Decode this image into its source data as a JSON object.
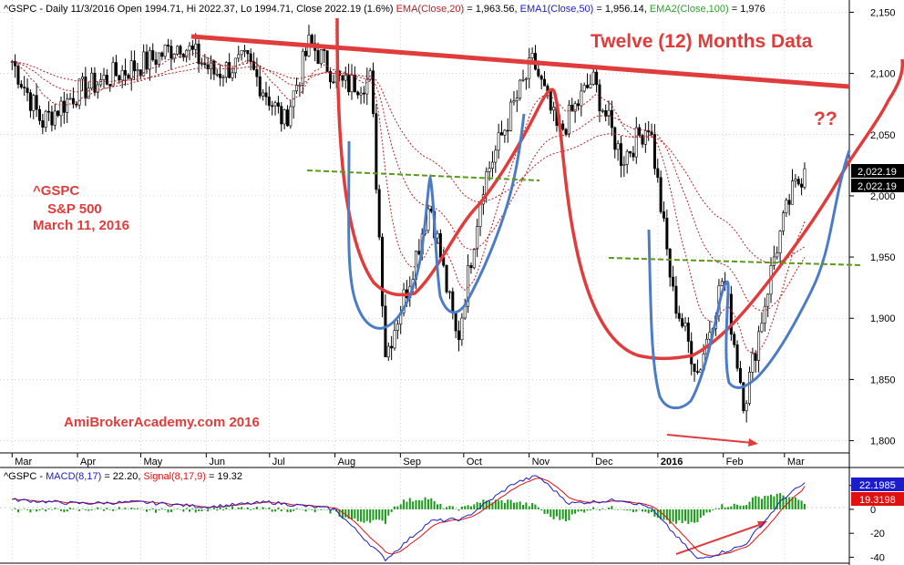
{
  "colors": {
    "price_bars": "#000000",
    "ema20": "#b22222",
    "ema50": "#1c1cc8",
    "ema100": "#2ca02c",
    "annotation_red": "#e03c3c",
    "annotation_blue": "#4d7cc7",
    "annotation_green": "#5a9a1a",
    "macd_line": "#1c1cc8",
    "signal_line": "#e01010",
    "histogram": "#1a9a1a",
    "last_price_box": "#000000",
    "macd_box": "#1c1cc8",
    "signal_box": "#e01010"
  },
  "header": {
    "symbol_info": "^GSPC - Daily 11/3/2016 Open 1994.71, Hi 2022.37, Lo 1994.71, Close 2022.19 (1.6%)",
    "ema20_label": "EMA(Close,20)",
    "ema20_value": " = 1,963.56, ",
    "ema50_label": "EMA1(Close,50)",
    "ema50_value": " = 1,956.14, ",
    "ema100_label": "EMA2(Close,100)",
    "ema100_value": " = 1,976"
  },
  "annotations": {
    "headline": "Twelve (12) Months Data",
    "question": "??",
    "ticker": "^GSPC",
    "index_name": "S&P 500",
    "date": "March 11, 2016",
    "watermark": "AmiBrokerAcademy.com  2016"
  },
  "price_axis": {
    "ticks": [
      "2,150",
      "2,100",
      "2,050",
      "2,000",
      "1,950",
      "1,900",
      "1,850",
      "1,800"
    ],
    "last_price_1": "2,022.19",
    "last_price_2": "2,022.19"
  },
  "time_axis": {
    "labels": [
      "Mar",
      "Apr",
      "May",
      "Jun",
      "Jul",
      "Aug",
      "Sep",
      "Oct",
      "Nov",
      "Dec",
      "2016",
      "Feb",
      "Mar"
    ]
  },
  "macd_panel": {
    "symbol": "^GSPC - ",
    "macd_label": "MACD(8,17)",
    "macd_value": " = 22.20, ",
    "signal_label": "Signal(8,17,9)",
    "signal_value": " = 19.32",
    "ticks": [
      "20",
      "0",
      "-20",
      "-40"
    ],
    "macd_box": "22.1985",
    "signal_box": "19.3198"
  },
  "chart_data": {
    "type": "candlestick",
    "price_ylim": [
      1790,
      2160
    ],
    "x_months": [
      "Mar",
      "Apr",
      "May",
      "Jun",
      "Jul",
      "Aug",
      "Sep",
      "Oct",
      "Nov",
      "Dec",
      "2016",
      "Feb",
      "Mar"
    ],
    "close_path": [
      [
        "2015-03-01",
        2110
      ],
      [
        "2015-03-15",
        2060
      ],
      [
        "2015-04-01",
        2085
      ],
      [
        "2015-04-20",
        2100
      ],
      [
        "2015-05-05",
        2110
      ],
      [
        "2015-05-20",
        2125
      ],
      [
        "2015-06-05",
        2100
      ],
      [
        "2015-06-20",
        2110
      ],
      [
        "2015-07-08",
        2060
      ],
      [
        "2015-07-20",
        2125
      ],
      [
        "2015-08-05",
        2090
      ],
      [
        "2015-08-18",
        2095
      ],
      [
        "2015-08-25",
        1870
      ],
      [
        "2015-09-05",
        1930
      ],
      [
        "2015-09-15",
        1995
      ],
      [
        "2015-09-28",
        1880
      ],
      [
        "2015-10-10",
        2010
      ],
      [
        "2015-10-25",
        2075
      ],
      [
        "2015-11-03",
        2110
      ],
      [
        "2015-11-15",
        2050
      ],
      [
        "2015-12-01",
        2095
      ],
      [
        "2015-12-15",
        2030
      ],
      [
        "2015-12-28",
        2060
      ],
      [
        "2016-01-08",
        1920
      ],
      [
        "2016-01-20",
        1855
      ],
      [
        "2016-02-01",
        1935
      ],
      [
        "2016-02-11",
        1830
      ],
      [
        "2016-02-25",
        1950
      ],
      [
        "2016-03-04",
        2000
      ],
      [
        "2016-03-11",
        2022.19
      ]
    ],
    "ema20_last": 1963.56,
    "ema50_last": 1956.14,
    "ema100_last": 1976,
    "last": {
      "open": 1994.71,
      "high": 2022.37,
      "low": 1994.71,
      "close": 2022.19,
      "change_pct": 1.6
    },
    "macd": {
      "fast": 8,
      "slow": 17,
      "signal": 9,
      "macd_last": 22.2,
      "signal_last": 19.32,
      "ylim": [
        -45,
        35
      ]
    },
    "macd_path": [
      [
        "2015-03-01",
        8
      ],
      [
        "2015-04-01",
        5
      ],
      [
        "2015-05-01",
        6
      ],
      [
        "2015-06-01",
        2
      ],
      [
        "2015-07-01",
        6
      ],
      [
        "2015-08-01",
        0
      ],
      [
        "2015-08-25",
        -42
      ],
      [
        "2015-09-15",
        -10
      ],
      [
        "2015-10-01",
        -8
      ],
      [
        "2015-10-25",
        22
      ],
      [
        "2015-11-05",
        28
      ],
      [
        "2015-11-20",
        5
      ],
      [
        "2015-12-15",
        8
      ],
      [
        "2015-12-28",
        2
      ],
      [
        "2016-01-20",
        -42
      ],
      [
        "2016-02-11",
        -30
      ],
      [
        "2016-03-01",
        10
      ],
      [
        "2016-03-11",
        22.2
      ]
    ]
  }
}
